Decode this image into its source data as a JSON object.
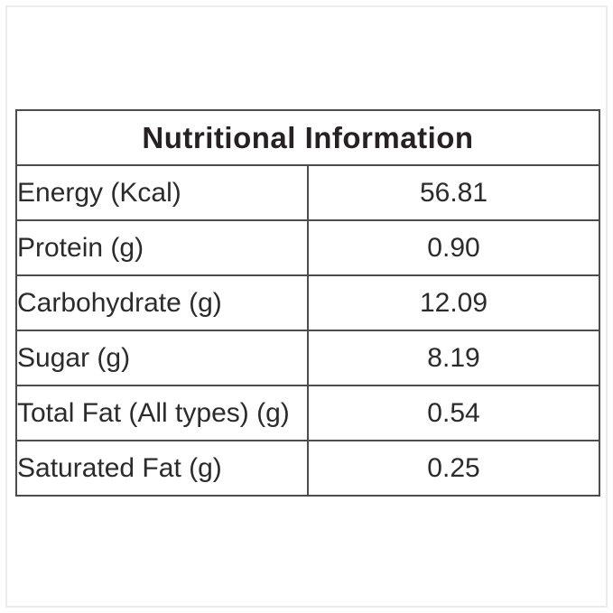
{
  "page": {
    "background": "#ffffff",
    "frame_border_color": "#ececec"
  },
  "table": {
    "title": "Nutritional Information",
    "border_color": "#4d4d4d",
    "text_color": "#2b2b2b",
    "rows": [
      {
        "label": "Energy (Kcal)",
        "value": "56.81"
      },
      {
        "label": "Protein (g)",
        "value": "0.90"
      },
      {
        "label": "Carbohydrate (g)",
        "value": "12.09"
      },
      {
        "label": "Sugar (g)",
        "value": "8.19"
      },
      {
        "label": "Total Fat (All types) (g)",
        "value": "0.54"
      },
      {
        "label": "Saturated Fat (g)",
        "value": "0.25"
      }
    ]
  }
}
